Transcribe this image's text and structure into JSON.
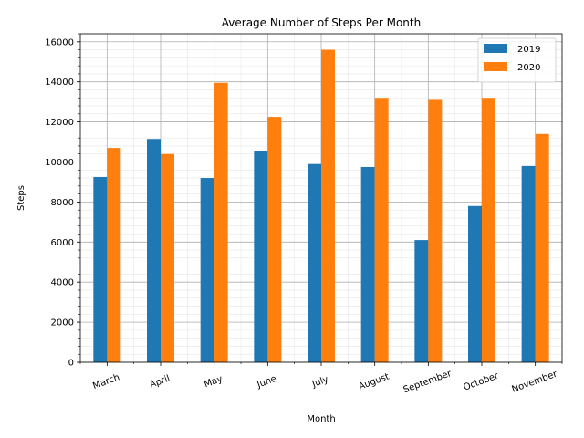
{
  "chart_data": {
    "type": "bar",
    "title": "Average Number of Steps Per Month",
    "xlabel": "Month",
    "ylabel": "Steps",
    "ylim": [
      0,
      16400
    ],
    "yticks": [
      0,
      2000,
      4000,
      6000,
      8000,
      10000,
      12000,
      14000,
      16000
    ],
    "grid": true,
    "legend_position": "top-right",
    "categories": [
      "March",
      "April",
      "May",
      "June",
      "July",
      "August",
      "September",
      "October",
      "November"
    ],
    "series": [
      {
        "name": "2019",
        "color": "#1f77b4",
        "values": [
          9250,
          11150,
          9200,
          10550,
          9900,
          9750,
          6100,
          7800,
          9800
        ]
      },
      {
        "name": "2020",
        "color": "#ff7f0e",
        "values": [
          10700,
          10400,
          13950,
          12250,
          15600,
          13200,
          13100,
          13200,
          11400
        ]
      }
    ]
  }
}
